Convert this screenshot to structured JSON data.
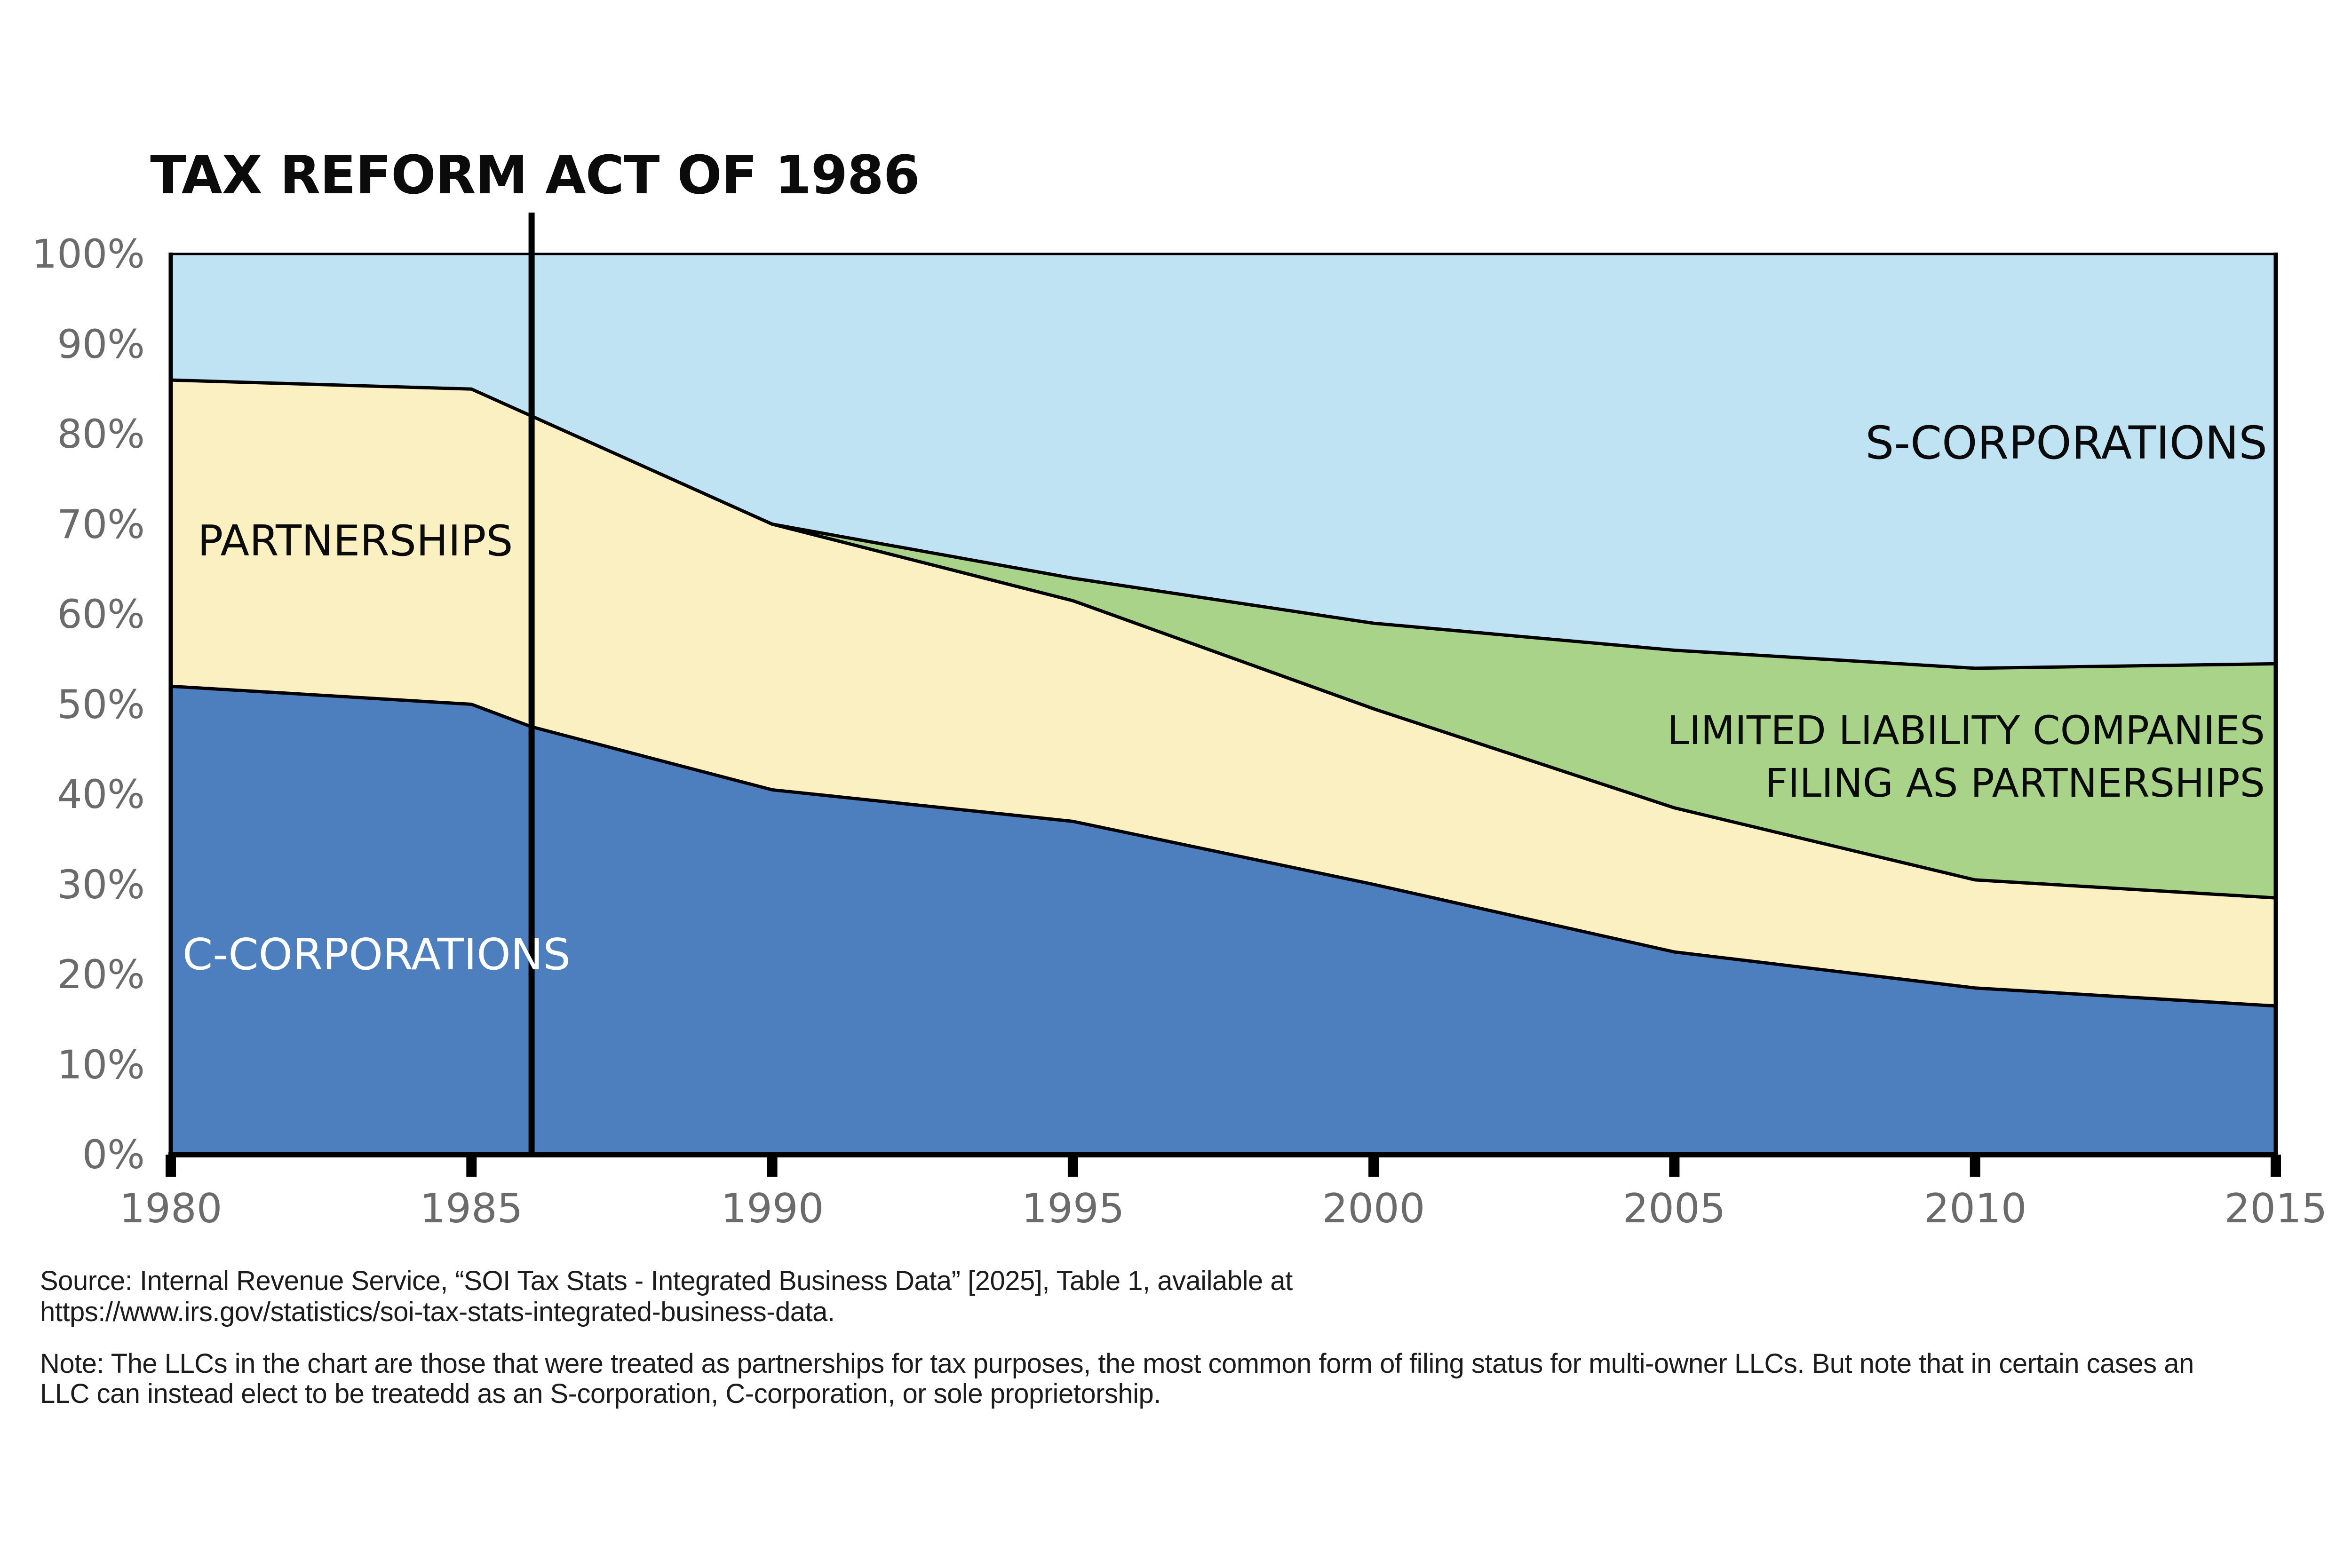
{
  "title": "TAX REFORM ACT OF 1986",
  "chart_data": {
    "type": "area",
    "stacked": true,
    "unit": "percent of business entities",
    "x": [
      1980,
      1985,
      1986,
      1990,
      1995,
      2000,
      2005,
      2010,
      2015
    ],
    "series": [
      {
        "key": "c-corporations",
        "name": "C-CORPORATIONS",
        "color": "#4D7EBE",
        "values": [
          52,
          50,
          47.5,
          40.5,
          37,
          30,
          22.5,
          18.5,
          16.5
        ]
      },
      {
        "key": "partnerships",
        "name": "PARTNERSHIPS",
        "color": "#FAF0C2",
        "values": [
          34,
          35,
          34.5,
          29.5,
          24.5,
          19.5,
          16,
          12,
          12
        ]
      },
      {
        "key": "llcs-filing-as-partnerships",
        "name": "LIMITED LIABILITY COMPANIES FILING AS PARTNERSHIPS",
        "color": "#A9D388",
        "values": [
          0,
          0,
          0,
          0,
          2.5,
          9.5,
          17.5,
          23.5,
          26
        ]
      },
      {
        "key": "s-corporations",
        "name": "S-CORPORATIONS",
        "color": "#BFE3F2",
        "values": [
          14,
          15,
          18,
          30,
          36,
          41,
          44,
          46,
          45.5
        ]
      }
    ],
    "ylim": [
      0,
      100
    ],
    "xlim": [
      1980,
      2015
    ],
    "y_tick_values": [
      100,
      90,
      80,
      70,
      60,
      50,
      40,
      30,
      20,
      10,
      0
    ],
    "y_ticks": [
      "100%",
      "90%",
      "80%",
      "70%",
      "60%",
      "50%",
      "40%",
      "30%",
      "20%",
      "10%",
      "0%"
    ],
    "x_tick_years": [
      1980,
      1985,
      1990,
      1995,
      2000,
      2005,
      2010,
      2015
    ],
    "x_ticks": [
      "1980",
      "1985",
      "1990",
      "1995",
      "2000",
      "2005",
      "2010",
      "2015"
    ],
    "grid": false,
    "legend": "labels drawn inside areas",
    "annotation": {
      "label": "TAX REFORM ACT OF 1986",
      "x": 1986
    }
  },
  "labels": {
    "partnerships": "PARTNERSHIPS",
    "c_corporations": "C-CORPORATIONS",
    "s_corporations": "S-CORPORATIONS",
    "llc_line1": "LIMITED LIABILITY COMPANIES",
    "llc_line2": "FILING AS PARTNERSHIPS"
  },
  "footer": {
    "source_line1": "Source: Internal Revenue Service, “SOI Tax Stats - Integrated Business Data” [2025], Table 1, available at",
    "source_line2": "https://www.irs.gov/statistics/soi-tax-stats-integrated-business-data.",
    "note_line1": "Note: The LLCs in the chart are those that were treated as partnerships for tax purposes, the most common form of filing status for multi-owner LLCs. But note that in certain cases an",
    "note_line2": "LLC can instead elect to be treatedd as an S-corporation, C-corporation, or sole proprietorship."
  },
  "colors": {
    "c_corporations": "#4D7EBE",
    "partnerships": "#FAF0C2",
    "llcs": "#A9D388",
    "s_corporations": "#BFE3F2",
    "line": "#000000",
    "axis_text": "#6B6B6B",
    "background": "#FFFFFF"
  }
}
